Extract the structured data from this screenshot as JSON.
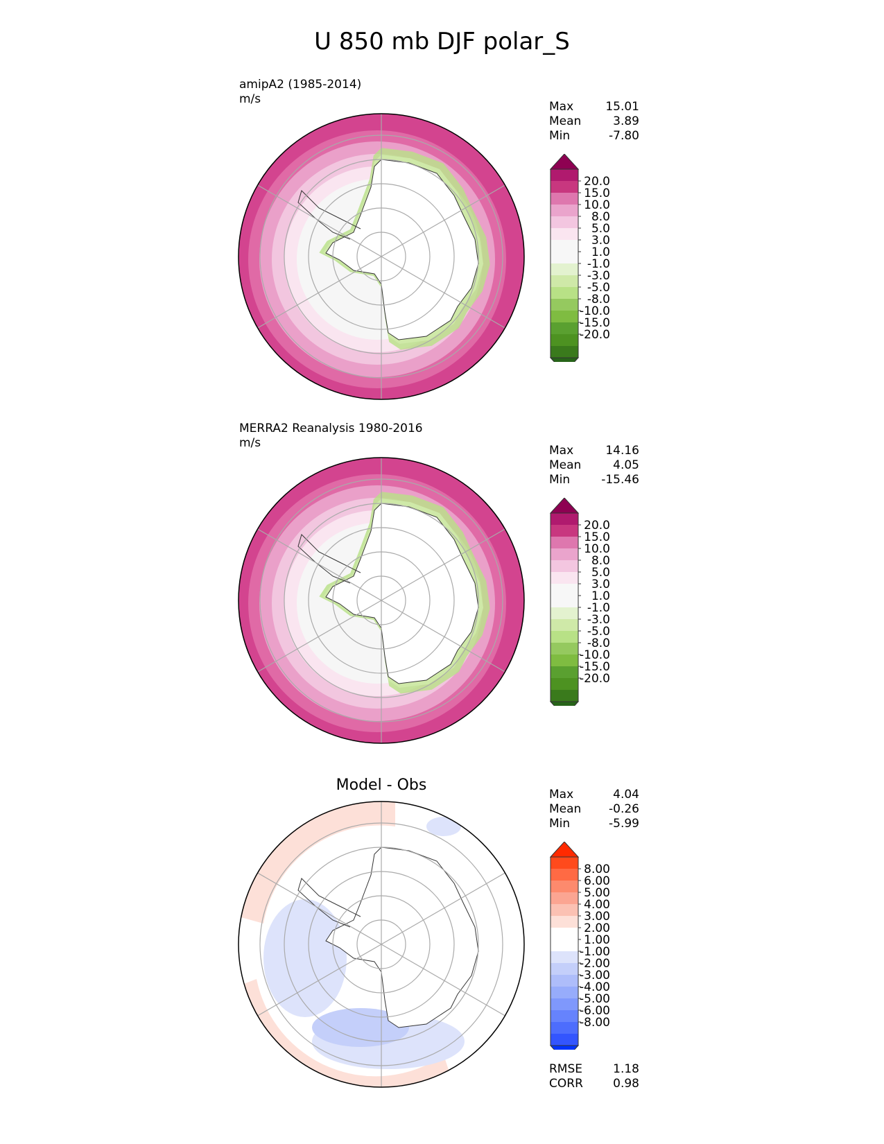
{
  "title": "U 850 mb DJF polar_S",
  "panels": [
    {
      "label": "amipA2 (1985-2014)",
      "units": "m/s",
      "stats": [
        {
          "name": "Max",
          "value": "15.01"
        },
        {
          "name": "Mean",
          "value": "3.89"
        },
        {
          "name": "Min",
          "value": "-7.80"
        }
      ]
    },
    {
      "label": "MERRA2 Reanalysis 1980-2016",
      "units": "m/s",
      "stats": [
        {
          "name": "Max",
          "value": "14.16"
        },
        {
          "name": "Mean",
          "value": "4.05"
        },
        {
          "name": "Min",
          "value": "-15.46"
        }
      ]
    },
    {
      "label": "Model - Obs",
      "stats": [
        {
          "name": "Max",
          "value": "4.04"
        },
        {
          "name": "Mean",
          "value": "-0.26"
        },
        {
          "name": "Min",
          "value": "-5.99"
        }
      ],
      "metrics": [
        {
          "name": "RMSE",
          "value": "1.18"
        },
        {
          "name": "CORR",
          "value": "0.98"
        }
      ]
    }
  ],
  "colorbars": {
    "field": {
      "tick_labels": [
        "20.0",
        "15.0",
        "10.0",
        "8.0",
        "5.0",
        "3.0",
        "1.0",
        "-1.0",
        "-3.0",
        "-5.0",
        "-8.0",
        "-10.0",
        "-15.0",
        "-20.0"
      ],
      "top_color": "#8e0152",
      "bottom_color": "#276419",
      "colors": [
        "#8e0152",
        "#b01a6e",
        "#c8377f",
        "#de77ae",
        "#eaa4cc",
        "#f3c6e0",
        "#fae5f0",
        "#f7f7f7",
        "#f7f7f7",
        "#e3f2cf",
        "#cfe9a8",
        "#b8e186",
        "#95c95f",
        "#7fbc41",
        "#5aa030",
        "#4d9221",
        "#3a7a1c",
        "#276419"
      ]
    },
    "diff": {
      "tick_labels": [
        "8.00",
        "6.00",
        "5.00",
        "4.00",
        "3.00",
        "2.00",
        "1.00",
        "-1.00",
        "-2.00",
        "-3.00",
        "-4.00",
        "-5.00",
        "-6.00",
        "-8.00"
      ],
      "top_color": "#ff2a00",
      "bottom_color": "#0033ff",
      "colors": [
        "#ff2a00",
        "#ff4a1c",
        "#ff6a44",
        "#fd8a6d",
        "#fba592",
        "#fbc1b3",
        "#fde0d8",
        "#ffffff",
        "#ffffff",
        "#dde3fb",
        "#c4cffa",
        "#aebdfa",
        "#97acfb",
        "#7f98fc",
        "#6683fd",
        "#4d6dfd",
        "#3355fe",
        "#0033ff"
      ]
    }
  },
  "chart_data": [
    {
      "type": "heatmap",
      "projection": "south-polar-stereographic",
      "title": "amipA2 (1985-2014)",
      "units": "m/s",
      "levels": [
        -20,
        -15,
        -10,
        -8,
        -5,
        -3,
        -1,
        1,
        3,
        5,
        8,
        10,
        15,
        20
      ],
      "extend": "both",
      "stats": {
        "max": 15.01,
        "mean": 3.89,
        "min": -7.8
      }
    },
    {
      "type": "heatmap",
      "projection": "south-polar-stereographic",
      "title": "MERRA2 Reanalysis 1980-2016",
      "units": "m/s",
      "levels": [
        -20,
        -15,
        -10,
        -8,
        -5,
        -3,
        -1,
        1,
        3,
        5,
        8,
        10,
        15,
        20
      ],
      "extend": "both",
      "stats": {
        "max": 14.16,
        "mean": 4.05,
        "min": -15.46
      }
    },
    {
      "type": "heatmap",
      "projection": "south-polar-stereographic",
      "title": "Model - Obs",
      "levels": [
        -8,
        -6,
        -5,
        -4,
        -3,
        -2,
        -1,
        1,
        2,
        3,
        4,
        5,
        6,
        8
      ],
      "extend": "both",
      "stats": {
        "max": 4.04,
        "mean": -0.26,
        "min": -5.99,
        "rmse": 1.18,
        "corr": 0.98
      }
    }
  ]
}
